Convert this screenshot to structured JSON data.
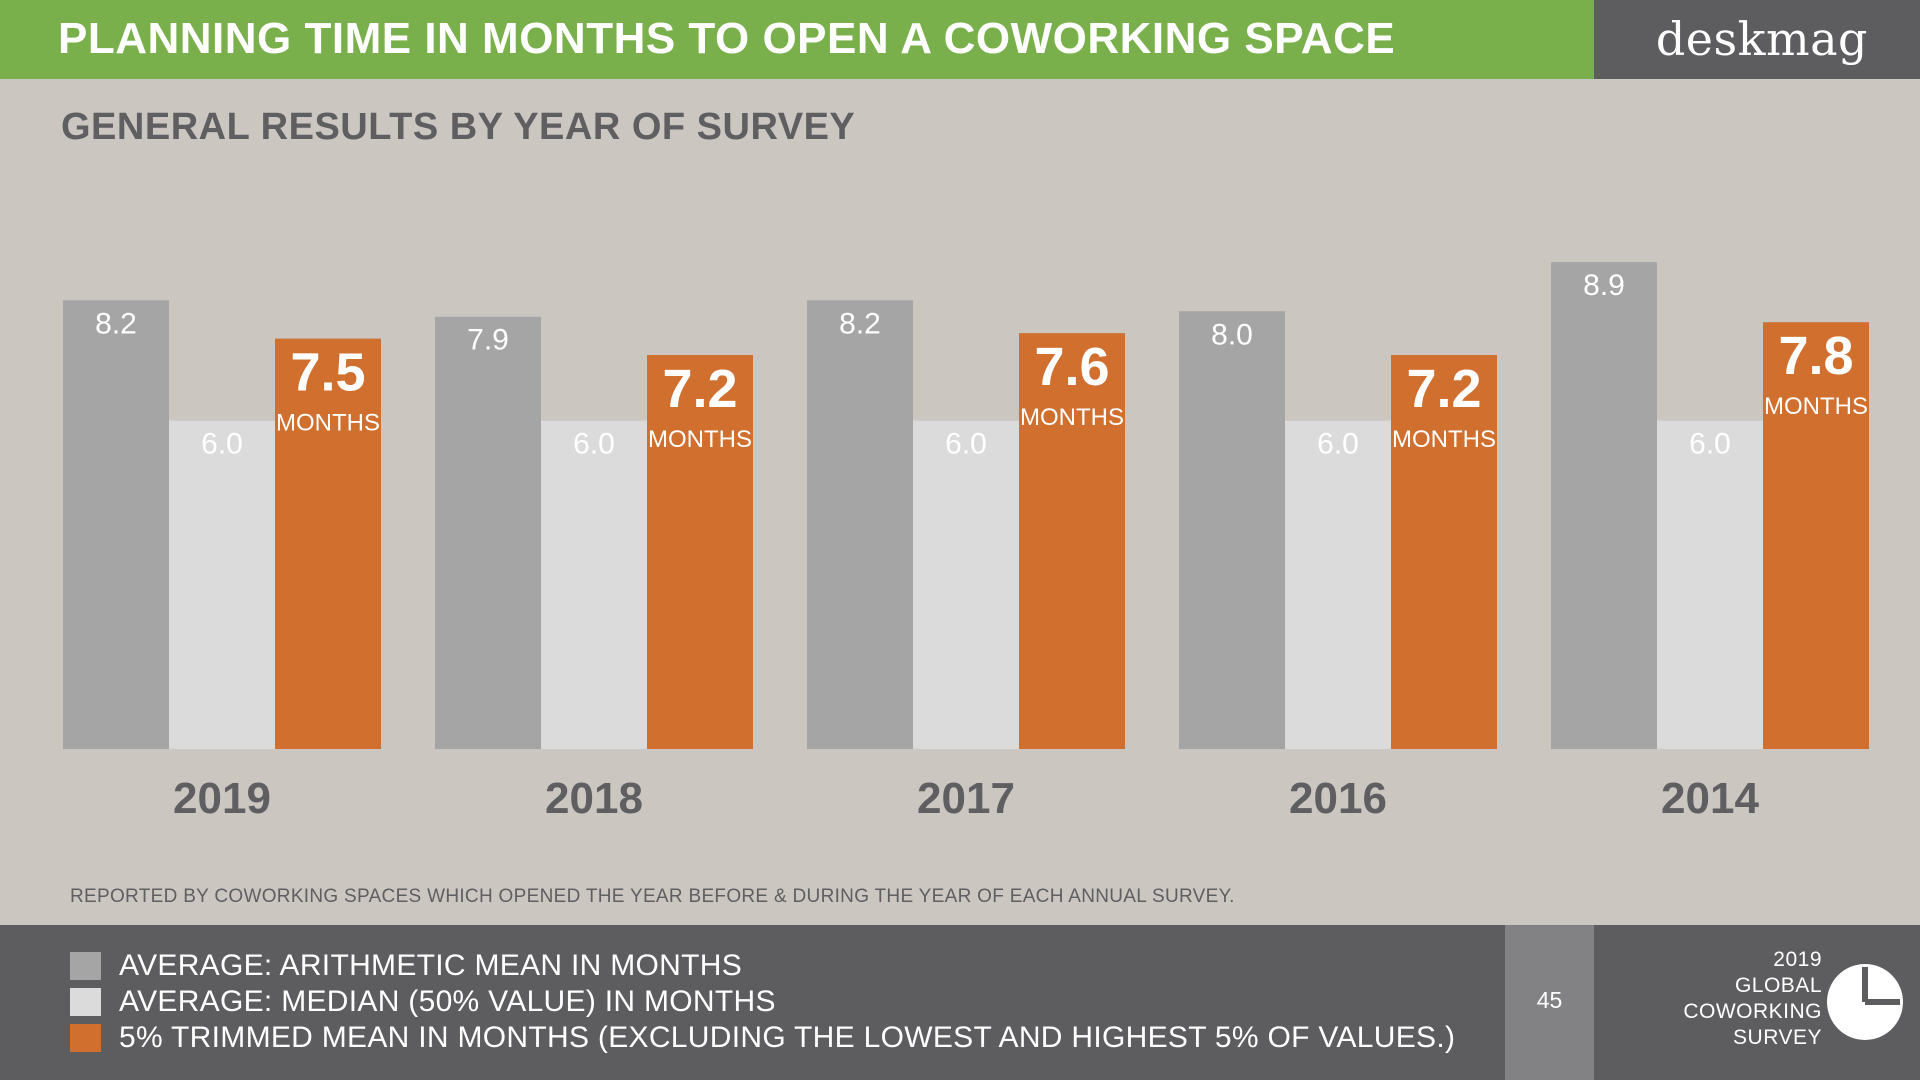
{
  "header": {
    "title": "PLANNING TIME IN MONTHS TO OPEN A COWORKING SPACE",
    "brand": "deskmag"
  },
  "subtitle": "GENERAL RESULTS BY YEAR OF SURVEY",
  "chart_data": {
    "type": "bar",
    "title": "PLANNING TIME IN MONTHS TO OPEN A COWORKING SPACE",
    "subtitle": "GENERAL RESULTS BY YEAR OF SURVEY",
    "categories": [
      "2019",
      "2018",
      "2017",
      "2016",
      "2014"
    ],
    "series": [
      {
        "name": "AVERAGE: ARITHMETIC MEAN IN MONTHS",
        "color": "#a5a5a5",
        "values": [
          8.2,
          7.9,
          8.2,
          8.0,
          8.9
        ],
        "labels": [
          "8.2",
          "7.9",
          "8.2",
          "8.0",
          "8.9"
        ]
      },
      {
        "name": "AVERAGE: MEDIAN (50% VALUE) IN MONTHS",
        "color": "#dbdbdb",
        "values": [
          6.0,
          6.0,
          6.0,
          6.0,
          6.0
        ],
        "labels": [
          "6.0",
          "6.0",
          "6.0",
          "6.0",
          "6.0"
        ]
      },
      {
        "name": "5% TRIMMED MEAN IN MONTHS (EXCLUDING THE LOWEST AND HIGHEST 5% OF VALUES.)",
        "color": "#d06f2e",
        "values": [
          7.5,
          7.2,
          7.6,
          7.2,
          7.8
        ],
        "labels": [
          "7.5",
          "7.2",
          "7.6",
          "7.2",
          "7.8"
        ],
        "unit_label": "MONTHS"
      }
    ],
    "xlabel": "",
    "ylabel": "",
    "ylim": [
      0,
      10.6
    ],
    "grid": false,
    "legend_position": "bottom"
  },
  "footnote": "REPORTED BY COWORKING SPACES WHICH OPENED THE YEAR BEFORE & DURING THE YEAR OF EACH ANNUAL SURVEY.",
  "legend": [
    {
      "label": "AVERAGE: ARITHMETIC MEAN IN MONTHS",
      "color": "#a5a5a5"
    },
    {
      "label": "AVERAGE: MEDIAN (50% VALUE) IN MONTHS",
      "color": "#dbdbdb"
    },
    {
      "label": "5% TRIMMED MEAN IN MONTHS (EXCLUDING THE LOWEST AND HIGHEST 5% OF VALUES.)",
      "color": "#d06f2e"
    }
  ],
  "page_number": "45",
  "survey": {
    "lines": [
      "2019",
      "GLOBAL",
      "COWORKING",
      "SURVEY"
    ],
    "icon": "pie-chart-icon"
  },
  "colors": {
    "header_green": "#79b04c",
    "dark_band": "#5d5c5e",
    "page_box": "#828183",
    "background": "#cbc6c0",
    "text_gray": "#5f5e60"
  }
}
